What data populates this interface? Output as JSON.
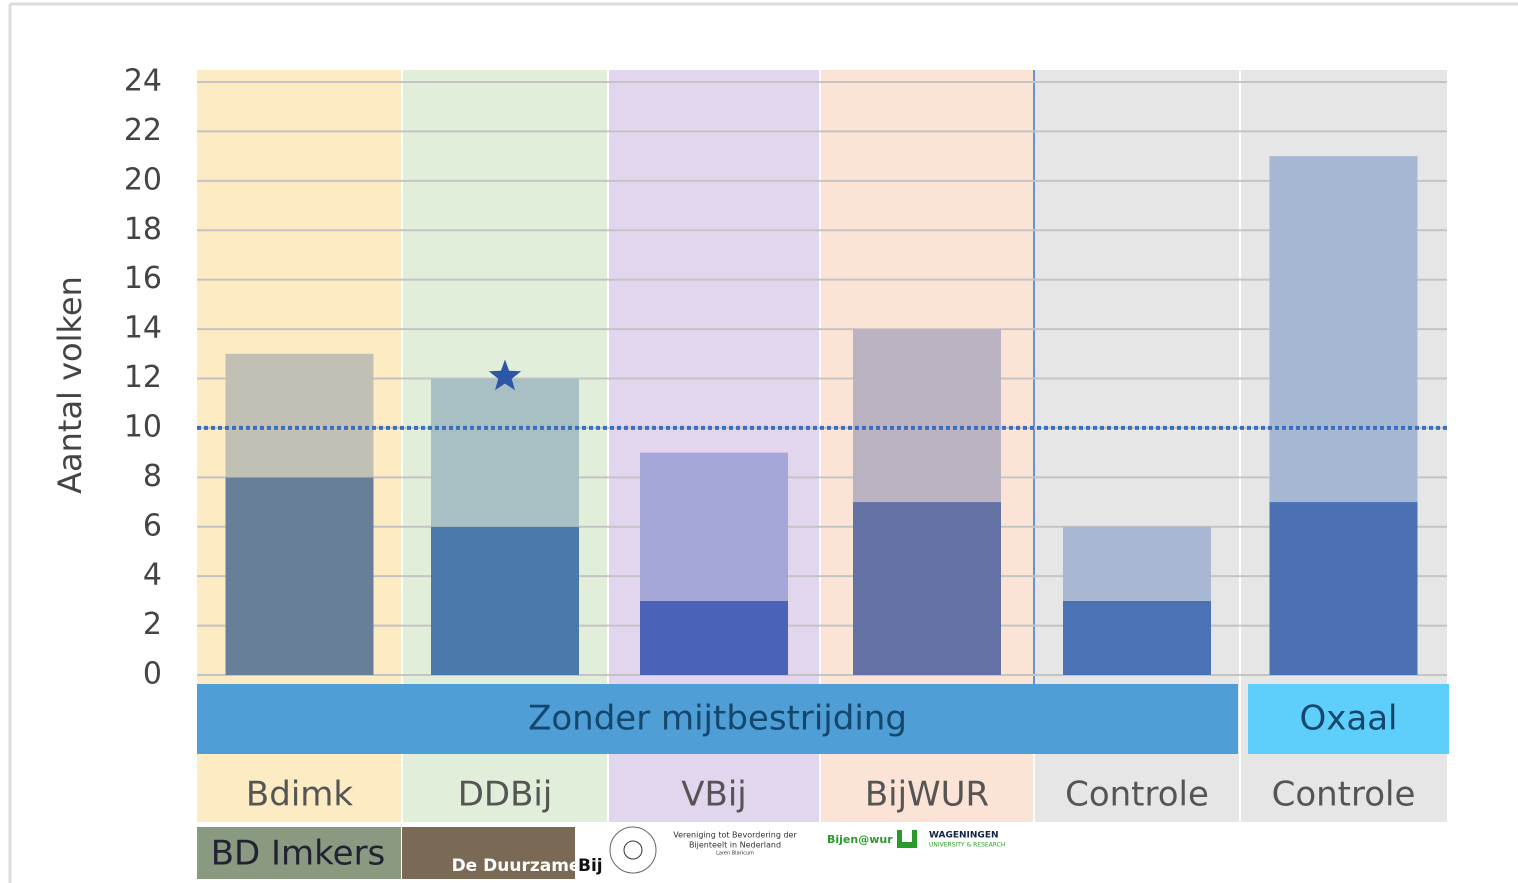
{
  "chart_data": {
    "type": "stacked_bar",
    "y_label": "Aantal volken",
    "categories": [
      "Bdimk",
      "DDBij",
      "VBij",
      "BijWUR",
      "Controle",
      "Controle"
    ],
    "band_colors": [
      "#fdebc3",
      "#e1eed9",
      "#e2d6ee",
      "#fbe4d6",
      "#e6e6e6",
      "#e6e6e6"
    ],
    "series": [
      {
        "values": [
          8,
          6,
          3,
          7,
          3,
          7
        ],
        "colors": [
          "#687f9a",
          "#4a7aab",
          "#4a63b8",
          "#6371a4",
          "#4b72b4",
          "#4b71b4"
        ]
      },
      {
        "values": [
          5,
          6,
          6,
          7,
          3,
          14
        ],
        "colors": [
          "#c0c1b4",
          "#a8bfc4",
          "#a5a7d8",
          "#bbb3c2",
          "#a8b7d2",
          "#a6b7d4"
        ]
      }
    ],
    "groups": [
      {
        "label": "Zonder mijtbestrijding",
        "color": "#4f9ed6"
      },
      {
        "label": "Oxaal",
        "color": "#5dcffa"
      }
    ],
    "reference_line": {
      "value": 10,
      "color": "#3a6fc0"
    },
    "ylim": [
      0,
      24
    ],
    "yticks": [
      0,
      2,
      4,
      6,
      8,
      10,
      12,
      14,
      16,
      18,
      20,
      22,
      24
    ],
    "grid": true
  },
  "footer_logos": {
    "bd": "BD Imkers",
    "ddb": "De Duurzame",
    "ddb2": "Bij",
    "vbbn1": "Vereniging tot Bevordering der",
    "vbbn2": "Bijenteelt in Nederland",
    "vbbn3": "Laren Blaricum",
    "bijen": "Bijen@wur",
    "wur1": "WAGENINGEN",
    "wur2": "UNIVERSITY & RESEARCH"
  }
}
